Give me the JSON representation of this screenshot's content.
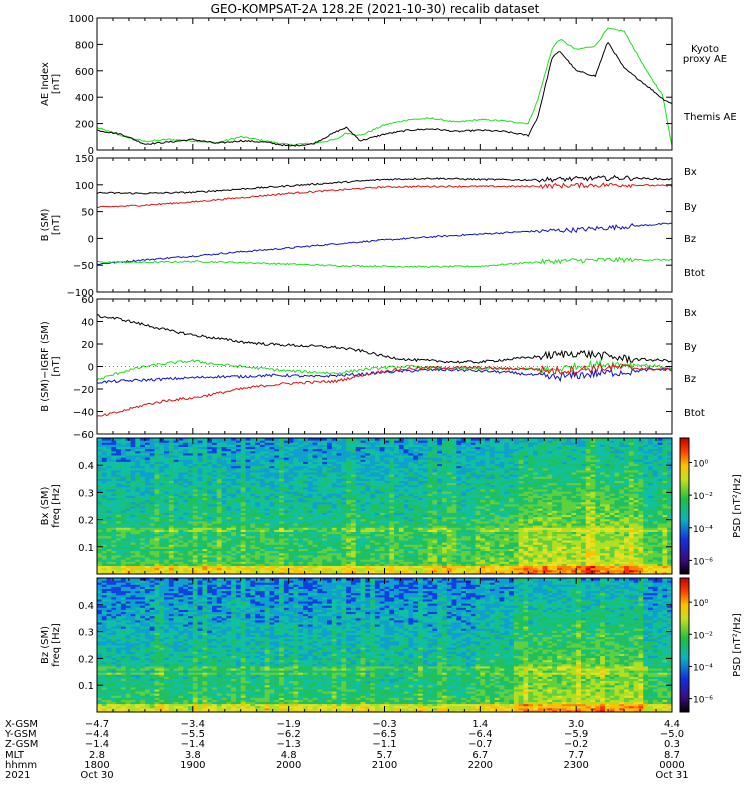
{
  "title": "GEO-KOMPSAT-2A 128.2E (2021-10-30) recalib dataset",
  "colors": {
    "black": "#000000",
    "red": "#dd1111",
    "green": "#22dd22",
    "blue": "#1111cc"
  },
  "chart_data": [
    {
      "type": "line",
      "ylabel_lines": [
        "AE Index",
        "[nT]"
      ],
      "ylim": [
        0,
        1000
      ],
      "yticks": [
        "0",
        "200",
        "400",
        "600",
        "800",
        "1000"
      ],
      "legend": [
        {
          "label": "Kyoto",
          "color": "#22dd22"
        },
        {
          "label": "proxy AE",
          "color": "#22dd22"
        },
        {
          "label": "Themis AE",
          "color": "#000000"
        }
      ],
      "x_hours": [
        18.0,
        18.25,
        18.5,
        18.75,
        19.0,
        19.25,
        19.5,
        19.75,
        20.0,
        20.25,
        20.5,
        20.6,
        20.75,
        21.0,
        21.25,
        21.5,
        21.75,
        22.0,
        22.25,
        22.5,
        22.6,
        22.75,
        22.83,
        23.0,
        23.2,
        23.33,
        23.5,
        23.75,
        23.9,
        24.0
      ],
      "series": [
        {
          "name": "Kyoto proxy AE",
          "color": "#22dd22",
          "values": [
            170,
            110,
            65,
            80,
            70,
            55,
            100,
            70,
            40,
            50,
            80,
            130,
            110,
            190,
            230,
            240,
            210,
            230,
            220,
            200,
            380,
            770,
            840,
            760,
            790,
            920,
            900,
            580,
            420,
            30
          ]
        },
        {
          "name": "Themis AE",
          "color": "#000000",
          "values": [
            150,
            120,
            45,
            60,
            80,
            50,
            70,
            60,
            30,
            45,
            140,
            170,
            70,
            120,
            150,
            160,
            140,
            150,
            140,
            110,
            250,
            700,
            750,
            600,
            560,
            820,
            620,
            480,
            390,
            350
          ]
        }
      ]
    },
    {
      "type": "line",
      "ylabel_lines": [
        "B (SM)",
        "[nT]"
      ],
      "ylim": [
        -100,
        150
      ],
      "yticks": [
        "−100",
        "−50",
        "0",
        "50",
        "100",
        "150"
      ],
      "legend": [
        {
          "label": "Bx",
          "color": "#1111cc"
        },
        {
          "label": "By",
          "color": "#22dd22"
        },
        {
          "label": "Bz",
          "color": "#dd1111"
        },
        {
          "label": "Btot",
          "color": "#000000"
        }
      ],
      "x_hours": [
        18.0,
        18.5,
        19.0,
        19.5,
        20.0,
        20.5,
        21.0,
        21.5,
        22.0,
        22.5,
        23.0,
        23.5,
        24.0
      ],
      "series": [
        {
          "name": "Bx",
          "color": "#1111cc",
          "values": [
            -48,
            -40,
            -33,
            -25,
            -18,
            -10,
            -3,
            3,
            8,
            13,
            16,
            22,
            28
          ]
        },
        {
          "name": "By",
          "color": "#22dd22",
          "values": [
            -44,
            -45,
            -43,
            -45,
            -48,
            -51,
            -52,
            -53,
            -52,
            -45,
            -41,
            -40,
            -40
          ]
        },
        {
          "name": "Bz",
          "color": "#dd1111",
          "values": [
            58,
            62,
            68,
            76,
            84,
            90,
            96,
            97,
            97,
            97,
            99,
            100,
            98
          ]
        },
        {
          "name": "Btot",
          "color": "#000000",
          "values": [
            85,
            84,
            86,
            92,
            98,
            104,
            110,
            112,
            110,
            109,
            111,
            113,
            110
          ]
        }
      ]
    },
    {
      "type": "line",
      "ylabel_lines": [
        "B (SM)−IGRF (SM)",
        "[nT]"
      ],
      "ylim": [
        -60,
        60
      ],
      "yticks": [
        "−60",
        "−40",
        "−20",
        "0",
        "20",
        "40",
        "60"
      ],
      "legend": [
        {
          "label": "Bx",
          "color": "#1111cc"
        },
        {
          "label": "By",
          "color": "#22dd22"
        },
        {
          "label": "Bz",
          "color": "#dd1111"
        },
        {
          "label": "Btot",
          "color": "#000000"
        }
      ],
      "x_hours": [
        18.0,
        18.25,
        18.5,
        18.75,
        19.0,
        19.25,
        19.5,
        19.75,
        20.0,
        20.25,
        20.5,
        20.75,
        21.0,
        21.25,
        21.5,
        21.75,
        22.0,
        22.25,
        22.5,
        22.75,
        23.0,
        23.25,
        23.5,
        23.75,
        24.0
      ],
      "series": [
        {
          "name": "Bx",
          "color": "#1111cc",
          "values": [
            -14,
            -13,
            -12,
            -11,
            -10,
            -9,
            -9,
            -8,
            -8,
            -9,
            -8,
            -7,
            -5,
            -4,
            -3,
            -3,
            -4,
            -5,
            -7,
            -10,
            -8,
            -6,
            -5,
            -3,
            -2
          ]
        },
        {
          "name": "By",
          "color": "#22dd22",
          "values": [
            -12,
            -5,
            0,
            3,
            5,
            2,
            0,
            -2,
            -4,
            -5,
            -6,
            -3,
            -1,
            0,
            -1,
            -2,
            -2,
            -2,
            -2,
            -3,
            0,
            2,
            2,
            1,
            -1
          ]
        },
        {
          "name": "Bz",
          "color": "#dd1111",
          "values": [
            -45,
            -40,
            -34,
            -30,
            -28,
            -24,
            -20,
            -17,
            -15,
            -14,
            -13,
            -8,
            -4,
            -2,
            -1,
            -1,
            -1,
            -2,
            -2,
            -4,
            -3,
            -1,
            -1,
            -2,
            -3
          ]
        },
        {
          "name": "Btot",
          "color": "#000000",
          "values": [
            45,
            42,
            37,
            32,
            28,
            25,
            22,
            20,
            19,
            18,
            17,
            14,
            9,
            6,
            5,
            4,
            4,
            6,
            8,
            10,
            12,
            10,
            7,
            6,
            5
          ]
        }
      ]
    },
    {
      "type": "heatmap",
      "ylabel_lines": [
        "Bx (SM)",
        "freq [Hz]"
      ],
      "ylim": [
        0,
        0.5
      ],
      "yticks": [
        "0.1",
        "0.2",
        "0.3",
        "0.4"
      ],
      "colorbar_label": "PSD [nT²/Hz]",
      "colorbar_ticks": [
        "10⁰",
        "10⁻²",
        "10⁻⁴",
        "10⁻⁶"
      ]
    },
    {
      "type": "heatmap",
      "ylabel_lines": [
        "Bz (SM)",
        "freq [Hz]"
      ],
      "ylim": [
        0,
        0.5
      ],
      "yticks": [
        "0.1",
        "0.2",
        "0.3",
        "0.4"
      ],
      "colorbar_label": "PSD [nT²/Hz]",
      "colorbar_ticks": [
        "10⁰",
        "10⁻²",
        "10⁻⁴",
        "10⁻⁶"
      ]
    }
  ],
  "x_axis": {
    "row_labels": [
      "X-GSM",
      "Y-GSM",
      "Z-GSM",
      "MLT",
      "hhmm",
      "2021"
    ],
    "columns": [
      {
        "hour": 18.0,
        "values": [
          "−4.7",
          "−4.4",
          "−1.4",
          "2.8",
          "1800",
          "Oct 30"
        ]
      },
      {
        "hour": 19.0,
        "values": [
          "−3.4",
          "−5.5",
          "−1.4",
          "3.8",
          "1900",
          ""
        ]
      },
      {
        "hour": 20.0,
        "values": [
          "−1.9",
          "−6.2",
          "−1.3",
          "4.8",
          "2000",
          ""
        ]
      },
      {
        "hour": 21.0,
        "values": [
          "−0.3",
          "−6.5",
          "−1.1",
          "5.7",
          "2100",
          ""
        ]
      },
      {
        "hour": 22.0,
        "values": [
          "1.4",
          "−6.4",
          "−0.7",
          "6.7",
          "2200",
          ""
        ]
      },
      {
        "hour": 23.0,
        "values": [
          "3.0",
          "−5.9",
          "−0.2",
          "7.7",
          "2300",
          ""
        ]
      },
      {
        "hour": 24.0,
        "values": [
          "4.4",
          "−5.0",
          "0.3",
          "8.7",
          "0000",
          "Oct 31"
        ]
      }
    ]
  }
}
